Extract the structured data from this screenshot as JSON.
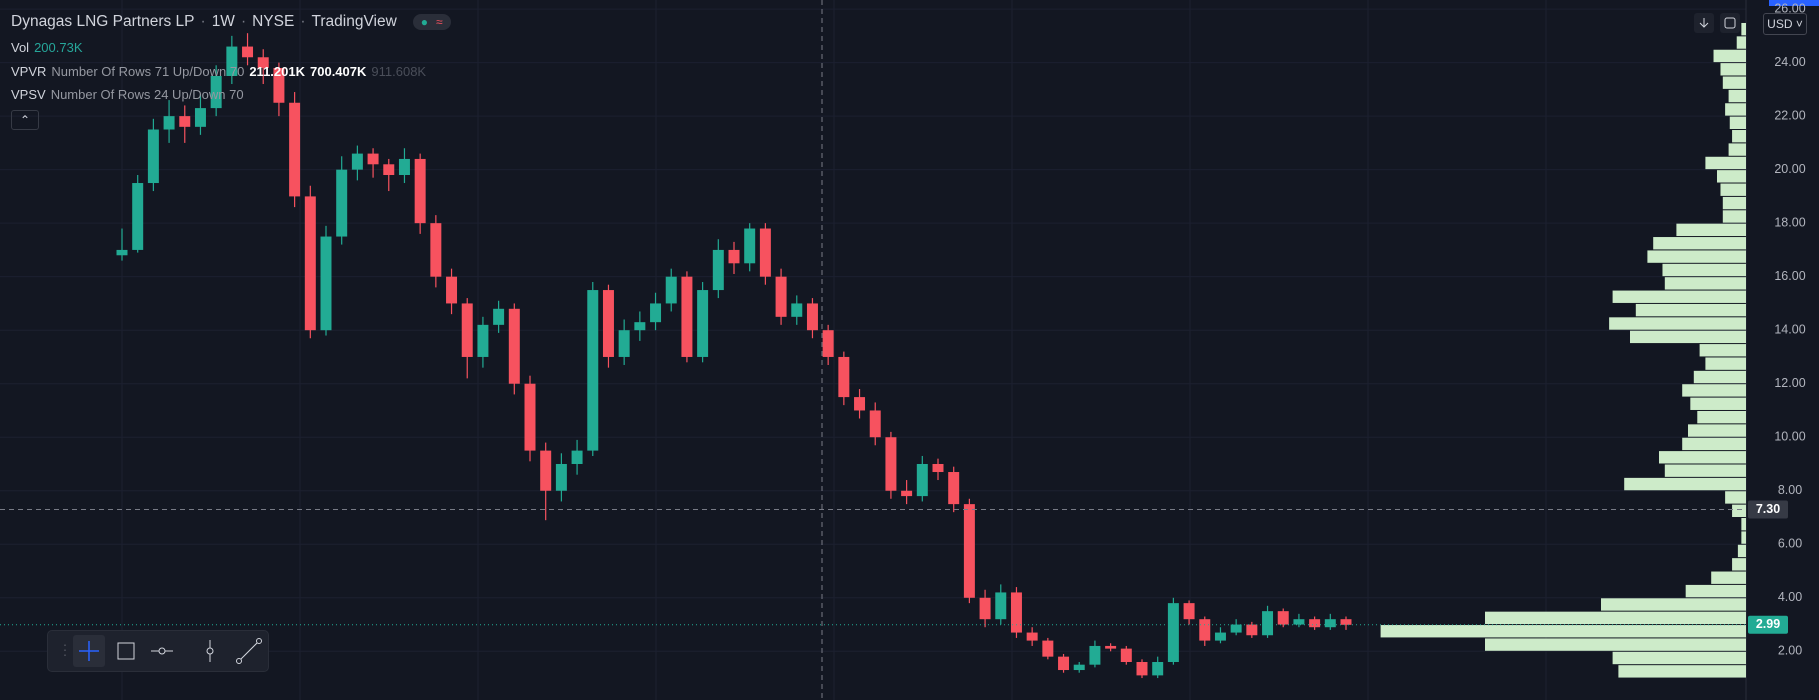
{
  "header": {
    "title": "Dynagas LNG Partners LP",
    "interval": "1W",
    "exchange": "NYSE",
    "source": "TradingView"
  },
  "indicators": [
    {
      "name": "Vol",
      "values": [
        "200.73K"
      ]
    },
    {
      "name": "VPVR",
      "params": "Number Of Rows 71 Up/Down 70",
      "values": [
        "211.201K",
        "700.407K",
        "911.608K"
      ]
    },
    {
      "name": "VPSV",
      "params": "Number Of Rows 24 Up/Down 70"
    }
  ],
  "currency": "USD",
  "chart_data": {
    "type": "candlestick",
    "ylim": [
      0.18,
      26.34
    ],
    "yticks": [
      {
        "value": 2,
        "label": "2.00"
      },
      {
        "value": 4,
        "label": "4.00"
      },
      {
        "value": 6,
        "label": "6.00"
      },
      {
        "value": 8,
        "label": "8.00"
      },
      {
        "value": 10,
        "label": "10.00"
      },
      {
        "value": 12,
        "label": "12.00"
      },
      {
        "value": 14,
        "label": "14.00"
      },
      {
        "value": 16,
        "label": "16.00"
      },
      {
        "value": 18,
        "label": "18.00"
      },
      {
        "value": 20,
        "label": "20.00"
      },
      {
        "value": 22,
        "label": "22.00"
      },
      {
        "value": 24,
        "label": "24.00"
      },
      {
        "value": 26,
        "label": "26.00"
      }
    ],
    "grid": true,
    "up_color": "#22ab94",
    "down_color": "#f7525f",
    "last_price": 2.99,
    "crosshair": {
      "value": 7.3,
      "label": "7.30"
    },
    "candles": [
      [
        16.8,
        17.8,
        16.6,
        17.0
      ],
      [
        17.0,
        19.8,
        16.9,
        19.5
      ],
      [
        19.5,
        21.9,
        19.2,
        21.5
      ],
      [
        21.5,
        22.6,
        21.0,
        22.0
      ],
      [
        22.0,
        22.4,
        21.0,
        21.6
      ],
      [
        21.6,
        22.8,
        21.3,
        22.3
      ],
      [
        22.3,
        23.9,
        22.0,
        23.5
      ],
      [
        23.5,
        25.0,
        23.2,
        24.6
      ],
      [
        24.6,
        25.1,
        23.9,
        24.2
      ],
      [
        24.2,
        24.5,
        23.2,
        23.8
      ],
      [
        23.8,
        24.0,
        22.0,
        22.5
      ],
      [
        22.5,
        22.9,
        18.6,
        19.0
      ],
      [
        19.0,
        19.4,
        13.7,
        14.0
      ],
      [
        14.0,
        17.9,
        13.8,
        17.5
      ],
      [
        17.5,
        20.5,
        17.2,
        20.0
      ],
      [
        20.0,
        20.9,
        19.6,
        20.6
      ],
      [
        20.6,
        20.8,
        19.7,
        20.2
      ],
      [
        20.2,
        20.4,
        19.2,
        19.8
      ],
      [
        19.8,
        20.8,
        19.5,
        20.4
      ],
      [
        20.4,
        20.6,
        17.6,
        18.0
      ],
      [
        18.0,
        18.3,
        15.6,
        16.0
      ],
      [
        16.0,
        16.3,
        14.6,
        15.0
      ],
      [
        15.0,
        15.2,
        12.2,
        13.0
      ],
      [
        13.0,
        14.5,
        12.6,
        14.2
      ],
      [
        14.2,
        15.1,
        13.9,
        14.8
      ],
      [
        14.8,
        15.0,
        11.6,
        12.0
      ],
      [
        12.0,
        12.3,
        9.1,
        9.5
      ],
      [
        9.5,
        9.8,
        6.9,
        8.0
      ],
      [
        8.0,
        9.4,
        7.6,
        9.0
      ],
      [
        9.0,
        9.9,
        8.6,
        9.5
      ],
      [
        9.5,
        15.8,
        9.3,
        15.5
      ],
      [
        15.5,
        15.7,
        12.6,
        13.0
      ],
      [
        13.0,
        14.4,
        12.7,
        14.0
      ],
      [
        14.0,
        14.7,
        13.6,
        14.3
      ],
      [
        14.3,
        15.4,
        14.0,
        15.0
      ],
      [
        15.0,
        16.3,
        14.7,
        16.0
      ],
      [
        16.0,
        16.2,
        12.8,
        13.0
      ],
      [
        13.0,
        15.8,
        12.8,
        15.5
      ],
      [
        15.5,
        17.4,
        15.2,
        17.0
      ],
      [
        17.0,
        17.3,
        16.1,
        16.5
      ],
      [
        16.5,
        18.0,
        16.2,
        17.8
      ],
      [
        17.8,
        18.0,
        15.7,
        16.0
      ],
      [
        16.0,
        16.3,
        14.2,
        14.5
      ],
      [
        14.5,
        15.3,
        14.2,
        15.0
      ],
      [
        15.0,
        15.2,
        13.7,
        14.0
      ],
      [
        14.0,
        14.2,
        12.7,
        13.0
      ],
      [
        13.0,
        13.2,
        11.2,
        11.5
      ],
      [
        11.5,
        11.8,
        10.7,
        11.0
      ],
      [
        11.0,
        11.3,
        9.7,
        10.0
      ],
      [
        10.0,
        10.2,
        7.7,
        8.0
      ],
      [
        8.0,
        8.4,
        7.5,
        7.8
      ],
      [
        7.8,
        9.3,
        7.6,
        9.0
      ],
      [
        9.0,
        9.2,
        8.4,
        8.7
      ],
      [
        8.7,
        8.9,
        7.2,
        7.5
      ],
      [
        7.5,
        7.7,
        3.8,
        4.0
      ],
      [
        4.0,
        4.3,
        2.9,
        3.2
      ],
      [
        3.2,
        4.5,
        3.0,
        4.2
      ],
      [
        4.2,
        4.4,
        2.5,
        2.7
      ],
      [
        2.7,
        2.9,
        2.2,
        2.4
      ],
      [
        2.4,
        2.5,
        1.7,
        1.8
      ],
      [
        1.8,
        1.9,
        1.2,
        1.3
      ],
      [
        1.3,
        1.6,
        1.2,
        1.5
      ],
      [
        1.5,
        2.4,
        1.4,
        2.2
      ],
      [
        2.2,
        2.3,
        2.0,
        2.1
      ],
      [
        2.1,
        2.2,
        1.5,
        1.6
      ],
      [
        1.6,
        1.7,
        1.0,
        1.1
      ],
      [
        1.1,
        1.8,
        1.0,
        1.6
      ],
      [
        1.6,
        4.0,
        1.5,
        3.8
      ],
      [
        3.8,
        3.9,
        3.0,
        3.2
      ],
      [
        3.2,
        3.3,
        2.2,
        2.4
      ],
      [
        2.4,
        2.9,
        2.3,
        2.7
      ],
      [
        2.7,
        3.2,
        2.6,
        3.0
      ],
      [
        3.0,
        3.1,
        2.5,
        2.6
      ],
      [
        2.6,
        3.7,
        2.5,
        3.5
      ],
      [
        3.5,
        3.6,
        2.9,
        3.0
      ],
      [
        3.0,
        3.4,
        2.9,
        3.2
      ],
      [
        3.2,
        3.3,
        2.8,
        2.9
      ],
      [
        2.9,
        3.4,
        2.8,
        3.2
      ],
      [
        3.2,
        3.3,
        2.8,
        2.99
      ]
    ],
    "volume_profile": {
      "color": "#cdebc9",
      "bins": [
        1.0,
        1.5,
        2.0,
        2.5,
        3.0,
        3.5,
        4.0,
        4.5,
        5.0,
        5.5,
        6.0,
        6.5,
        7.0,
        7.5,
        8.0,
        8.5,
        9.0,
        9.5,
        10.0,
        10.5,
        11.0,
        11.5,
        12.0,
        12.5,
        13.0,
        13.5,
        14.0,
        14.5,
        15.0,
        15.5,
        16.0,
        16.5,
        17.0,
        17.5,
        18.0,
        18.5,
        19.0,
        19.5,
        20.0,
        20.5,
        21.0,
        21.5,
        22.0,
        22.5,
        23.0,
        23.5,
        24.0,
        24.5,
        25.0,
        25.5
      ],
      "values": [
        110,
        115,
        225,
        315,
        225,
        125,
        52,
        30,
        12,
        7,
        4,
        4,
        12,
        18,
        105,
        70,
        75,
        55,
        50,
        42,
        48,
        55,
        45,
        35,
        40,
        100,
        118,
        95,
        115,
        70,
        72,
        85,
        80,
        60,
        20,
        20,
        22,
        25,
        35,
        15,
        12,
        14,
        18,
        15,
        20,
        22,
        28,
        8,
        4
      ]
    }
  }
}
